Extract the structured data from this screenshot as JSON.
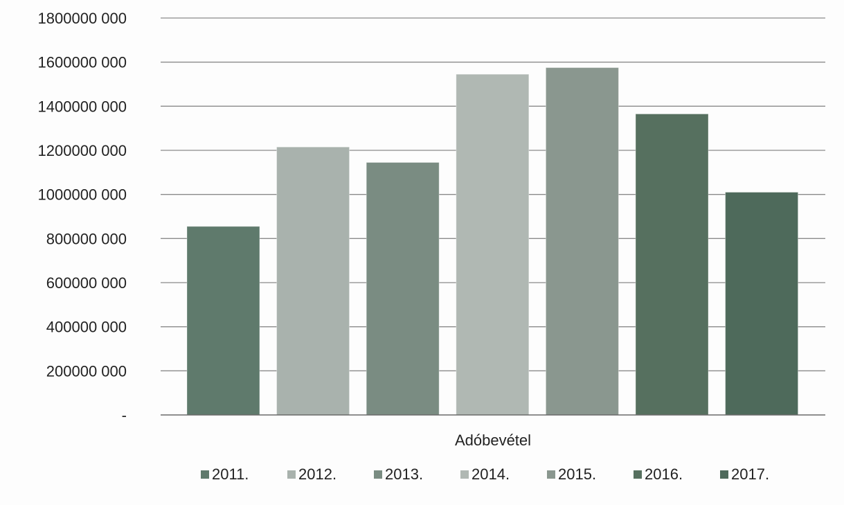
{
  "chart_data": {
    "type": "bar",
    "title": "",
    "xlabel": "",
    "ylabel": "",
    "category_label": "Adóbevétel",
    "ylim": [
      0,
      1800000000
    ],
    "y_ticks": [
      0,
      200000000,
      400000000,
      600000000,
      800000000,
      1000000000,
      1200000000,
      1400000000,
      1600000000,
      1800000000
    ],
    "y_tick_labels": [
      "-",
      "200000 000",
      "400000 000",
      "600000 000",
      "800000 000",
      "1000000 000",
      "1200000 000",
      "1400000 000",
      "1600000 000",
      "1800000 000"
    ],
    "grid": true,
    "legend_position": "bottom",
    "series": [
      {
        "name": "2011.",
        "value": 855000000,
        "color": "#5f7a6c"
      },
      {
        "name": "2012.",
        "value": 1215000000,
        "color": "#a9b2ad"
      },
      {
        "name": "2013.",
        "value": 1145000000,
        "color": "#7a8c82"
      },
      {
        "name": "2014.",
        "value": 1545000000,
        "color": "#b0b8b3"
      },
      {
        "name": "2015.",
        "value": 1575000000,
        "color": "#8a978f"
      },
      {
        "name": "2016.",
        "value": 1365000000,
        "color": "#56705f"
      },
      {
        "name": "2017.",
        "value": 1010000000,
        "color": "#4e6a5b"
      }
    ]
  }
}
